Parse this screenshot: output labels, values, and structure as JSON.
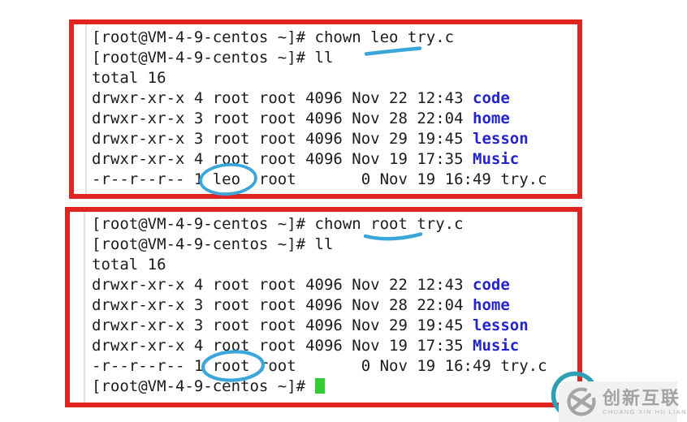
{
  "colors": {
    "box_border": "#e02420",
    "terminal_text": "#1c1c1c",
    "dir_name": "#2424cb",
    "annotation_blue": "#3aa6da",
    "cursor_green": "#33cc33",
    "watermark_circle_teal": "#2f9fb4",
    "watermark_bg": "#f1f1f1",
    "watermark_text": "#a2a2a2"
  },
  "terminal_top": {
    "lines": [
      {
        "text": "[root@VM-4-9-centos ~]# chown leo try.c"
      },
      {
        "text": "[root@VM-4-9-centos ~]# ll"
      },
      {
        "text": "total 16"
      },
      {
        "text": "drwxr-xr-x 4 root root 4096 Nov 22 12:43 ",
        "dir": "code"
      },
      {
        "text": "drwxr-xr-x 3 root root 4096 Nov 28 22:04 ",
        "dir": "home"
      },
      {
        "text": "drwxr-xr-x 3 root root 4096 Nov 29 19:45 ",
        "dir": "lesson"
      },
      {
        "text": "drwxr-xr-x 4 root root 4096 Nov 19 17:35 ",
        "dir": "Music"
      },
      {
        "text": "-r--r--r-- 1 leo  root       0 Nov 19 16:49 try.c"
      }
    ]
  },
  "terminal_bottom": {
    "lines": [
      {
        "text": "[root@VM-4-9-centos ~]# chown root try.c"
      },
      {
        "text": "[root@VM-4-9-centos ~]# ll"
      },
      {
        "text": "total 16"
      },
      {
        "text": "drwxr-xr-x 4 root root 4096 Nov 22 12:43 ",
        "dir": "code"
      },
      {
        "text": "drwxr-xr-x 3 root root 4096 Nov 28 22:04 ",
        "dir": "home"
      },
      {
        "text": "drwxr-xr-x 3 root root 4096 Nov 29 19:45 ",
        "dir": "lesson"
      },
      {
        "text": "drwxr-xr-x 4 root root 4096 Nov 19 17:35 ",
        "dir": "Music"
      },
      {
        "text": "-r--r--r-- 1 root root       0 Nov 19 16:49 try.c"
      }
    ],
    "clipped_prompt": "[root@VM-4-9-centos ~]# "
  },
  "annotations": {
    "color": "#3aa6da",
    "items": [
      {
        "name": "underline-leo",
        "annotated_text": "leo"
      },
      {
        "name": "circle-leo",
        "annotated_text": "leo"
      },
      {
        "name": "underline-root",
        "annotated_text": "root"
      },
      {
        "name": "circle-root",
        "annotated_text": "root"
      }
    ]
  },
  "watermark": {
    "logo_icon": "cx-circle-logo",
    "title": "创新互联",
    "subtitle": "CHUANG XIN HU LIAN"
  }
}
